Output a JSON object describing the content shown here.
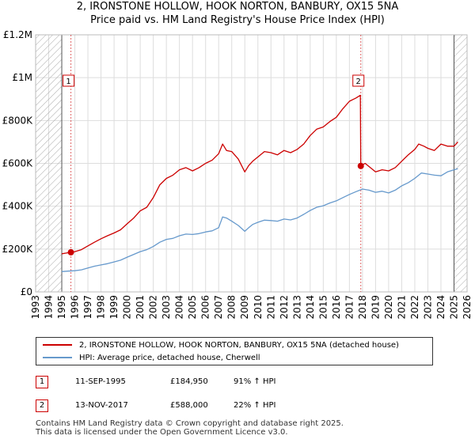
{
  "title_line1": "2, IRONSTONE HOLLOW, HOOK NORTON, BANBURY, OX15 5NA",
  "title_line2": "Price paid vs. HM Land Registry's House Price Index (HPI)",
  "colors": {
    "property": "#cc0000",
    "hpi": "#6699cc",
    "hatch": "#999999",
    "grid": "#dddddd"
  },
  "chart_data": {
    "type": "line",
    "xlim": [
      1993,
      2026
    ],
    "ylim": [
      0,
      1200000
    ],
    "y_ticks": [
      {
        "value": 0,
        "label": "£0"
      },
      {
        "value": 200000,
        "label": "£200K"
      },
      {
        "value": 400000,
        "label": "£400K"
      },
      {
        "value": 600000,
        "label": "£600K"
      },
      {
        "value": 800000,
        "label": "£800K"
      },
      {
        "value": 1000000,
        "label": "£1M"
      },
      {
        "value": 1200000,
        "label": "£1.2M"
      }
    ],
    "x_ticks": [
      "1993",
      "1994",
      "1995",
      "1996",
      "1997",
      "1998",
      "1999",
      "2000",
      "2001",
      "2002",
      "2003",
      "2004",
      "2005",
      "2006",
      "2007",
      "2008",
      "2009",
      "2010",
      "2011",
      "2012",
      "2013",
      "2014",
      "2015",
      "2016",
      "2017",
      "2018",
      "2019",
      "2020",
      "2021",
      "2022",
      "2023",
      "2024",
      "2025",
      "2026"
    ],
    "hatch_ranges": [
      [
        1993,
        1995.0
      ],
      [
        2025.0,
        2026
      ]
    ],
    "series": [
      {
        "name": "2, IRONSTONE HOLLOW, HOOK NORTON, BANBURY, OX15 5NA (detached house)",
        "color": "#cc0000",
        "x": [
          1995.0,
          1995.3,
          1995.7,
          1996.0,
          1996.5,
          1997.0,
          1997.5,
          1998.0,
          1998.5,
          1999.0,
          1999.5,
          2000.0,
          2000.5,
          2001.0,
          2001.5,
          2002.0,
          2002.5,
          2003.0,
          2003.5,
          2004.0,
          2004.5,
          2005.0,
          2005.5,
          2006.0,
          2006.5,
          2007.0,
          2007.3,
          2007.6,
          2008.0,
          2008.5,
          2009.0,
          2009.3,
          2009.6,
          2010.0,
          2010.5,
          2011.0,
          2011.5,
          2012.0,
          2012.5,
          2013.0,
          2013.5,
          2014.0,
          2014.5,
          2015.0,
          2015.5,
          2016.0,
          2016.5,
          2017.0,
          2017.5,
          2017.84,
          2017.87,
          2018.2,
          2018.6,
          2019.0,
          2019.5,
          2020.0,
          2020.5,
          2021.0,
          2021.5,
          2022.0,
          2022.3,
          2022.7,
          2023.0,
          2023.5,
          2024.0,
          2024.5,
          2025.0,
          2025.3
        ],
        "values": [
          178000,
          181000,
          184950,
          188000,
          197000,
          215000,
          232000,
          248000,
          262000,
          275000,
          290000,
          318000,
          345000,
          378000,
          395000,
          440000,
          500000,
          530000,
          545000,
          570000,
          580000,
          565000,
          580000,
          600000,
          615000,
          645000,
          690000,
          660000,
          655000,
          620000,
          560000,
          590000,
          610000,
          630000,
          655000,
          650000,
          640000,
          660000,
          650000,
          665000,
          690000,
          730000,
          760000,
          770000,
          795000,
          815000,
          855000,
          890000,
          905000,
          918000,
          588000,
          600000,
          580000,
          560000,
          570000,
          565000,
          580000,
          610000,
          640000,
          665000,
          690000,
          680000,
          670000,
          660000,
          690000,
          680000,
          680000,
          700000
        ]
      },
      {
        "name": "HPI: Average price, detached house, Cherwell",
        "color": "#6699cc",
        "x": [
          1995.0,
          1995.5,
          1996.0,
          1996.5,
          1997.0,
          1997.5,
          1998.0,
          1998.5,
          1999.0,
          1999.5,
          2000.0,
          2000.5,
          2001.0,
          2001.5,
          2002.0,
          2002.5,
          2003.0,
          2003.5,
          2004.0,
          2004.5,
          2005.0,
          2005.5,
          2006.0,
          2006.5,
          2007.0,
          2007.3,
          2007.6,
          2008.0,
          2008.5,
          2009.0,
          2009.3,
          2009.6,
          2010.0,
          2010.5,
          2011.0,
          2011.5,
          2012.0,
          2012.5,
          2013.0,
          2013.5,
          2014.0,
          2014.5,
          2015.0,
          2015.5,
          2016.0,
          2016.5,
          2017.0,
          2017.5,
          2018.0,
          2018.5,
          2019.0,
          2019.5,
          2020.0,
          2020.5,
          2021.0,
          2021.5,
          2022.0,
          2022.5,
          2023.0,
          2023.5,
          2024.0,
          2024.5,
          2025.0,
          2025.3
        ],
        "values": [
          95000,
          97000,
          99000,
          103000,
          112000,
          120000,
          126000,
          132000,
          140000,
          148000,
          162000,
          175000,
          188000,
          197000,
          212000,
          232000,
          245000,
          250000,
          262000,
          270000,
          268000,
          272000,
          280000,
          285000,
          300000,
          350000,
          345000,
          330000,
          310000,
          283000,
          300000,
          315000,
          325000,
          335000,
          333000,
          330000,
          340000,
          336000,
          345000,
          362000,
          380000,
          395000,
          402000,
          415000,
          425000,
          440000,
          455000,
          468000,
          480000,
          475000,
          465000,
          470000,
          462000,
          475000,
          495000,
          510000,
          530000,
          555000,
          550000,
          545000,
          542000,
          560000,
          570000,
          575000
        ]
      }
    ],
    "sales": [
      {
        "label": "1",
        "x": 1995.7,
        "y": 184950
      },
      {
        "label": "2",
        "x": 2017.87,
        "y": 588000
      }
    ]
  },
  "legend": {
    "property": "2, IRONSTONE HOLLOW, HOOK NORTON, BANBURY, OX15 5NA (detached house)",
    "hpi": "HPI: Average price, detached house, Cherwell"
  },
  "sales_table": [
    {
      "label": "1",
      "date": "11-SEP-1995",
      "price": "£184,950",
      "hpi": "91% ↑ HPI"
    },
    {
      "label": "2",
      "date": "13-NOV-2017",
      "price": "£588,000",
      "hpi": "22% ↑ HPI"
    }
  ],
  "footer_line1": "Contains HM Land Registry data © Crown copyright and database right 2025.",
  "footer_line2": "This data is licensed under the Open Government Licence v3.0."
}
